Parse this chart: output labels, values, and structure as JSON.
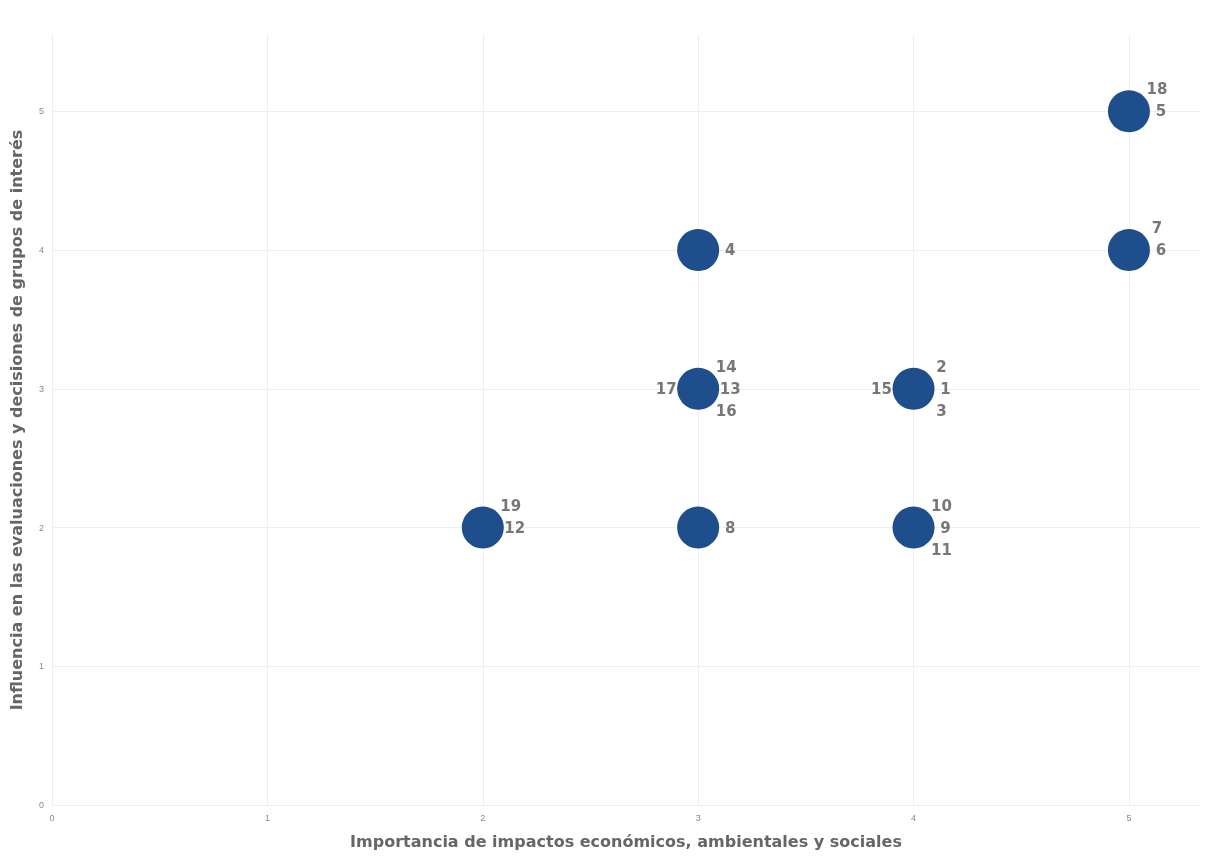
{
  "chart_data": {
    "type": "scatter",
    "xlabel": "Importancia de impactos económicos, ambientales y sociales",
    "ylabel": "Influencia en las evaluaciones y decisiones de grupos de interés",
    "x": [
      2,
      3,
      3,
      3,
      4,
      4,
      5,
      5
    ],
    "series": [
      {
        "color": "#1f4e8c",
        "values": [
          2,
          2,
          3,
          4,
          2,
          3,
          4,
          5
        ]
      }
    ],
    "xlim": [
      0,
      5.33
    ],
    "xticks": [
      0,
      1,
      2,
      3,
      4,
      5
    ],
    "ylim": [
      0,
      5.55
    ],
    "yticks": [
      0,
      1,
      2,
      3,
      4,
      5
    ],
    "grid": true,
    "marker": "circle",
    "annotations": [
      {
        "text": "1",
        "x": 4,
        "y": 3
      },
      {
        "text": "2",
        "x": 4,
        "y": 3
      },
      {
        "text": "3",
        "x": 4,
        "y": 3
      },
      {
        "text": "4",
        "x": 3,
        "y": 4
      },
      {
        "text": "5",
        "x": 5,
        "y": 5
      },
      {
        "text": "6",
        "x": 5,
        "y": 4
      },
      {
        "text": "7",
        "x": 5,
        "y": 4
      },
      {
        "text": "8",
        "x": 3,
        "y": 2
      },
      {
        "text": "9",
        "x": 4,
        "y": 2
      },
      {
        "text": "10",
        "x": 4,
        "y": 2
      },
      {
        "text": "11",
        "x": 4,
        "y": 2
      },
      {
        "text": "12",
        "x": 2,
        "y": 2
      },
      {
        "text": "13",
        "x": 3,
        "y": 3
      },
      {
        "text": "14",
        "x": 3,
        "y": 3
      },
      {
        "text": "15",
        "x": 4,
        "y": 3
      },
      {
        "text": "16",
        "x": 3,
        "y": 3
      },
      {
        "text": "17",
        "x": 3,
        "y": 3
      },
      {
        "text": "18",
        "x": 5,
        "y": 5
      },
      {
        "text": "19",
        "x": 2,
        "y": 2
      }
    ]
  }
}
